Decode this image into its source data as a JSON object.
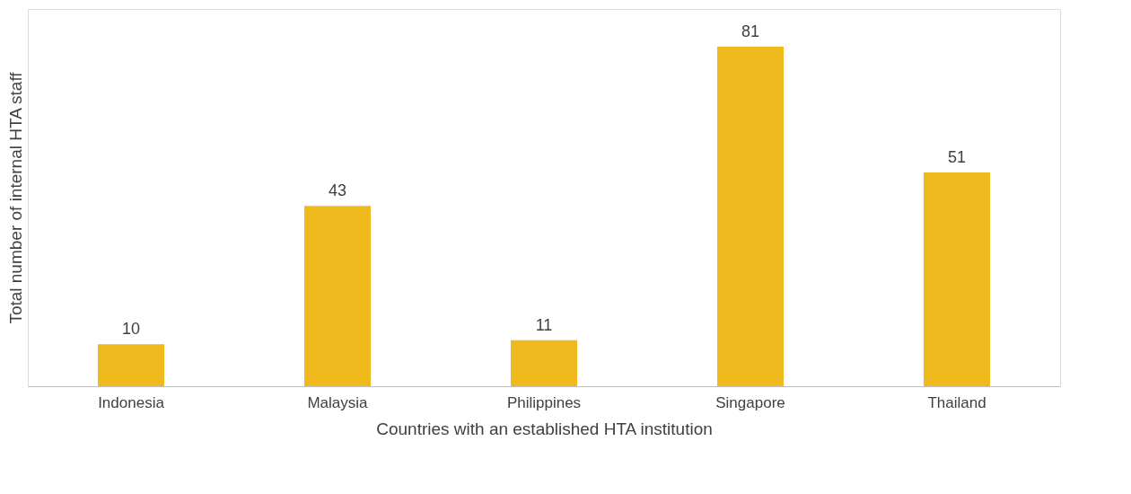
{
  "chart_data": {
    "type": "bar",
    "xlabel": "Countries with an established HTA institution",
    "ylabel": "Total number of internal HTA staff",
    "categories": [
      "Indonesia",
      "Malaysia",
      "Philippines",
      "Singapore",
      "Thailand"
    ],
    "values": [
      10,
      43,
      11,
      81,
      51
    ],
    "color": "#f0b91e",
    "data_labels": true,
    "grid": false
  }
}
